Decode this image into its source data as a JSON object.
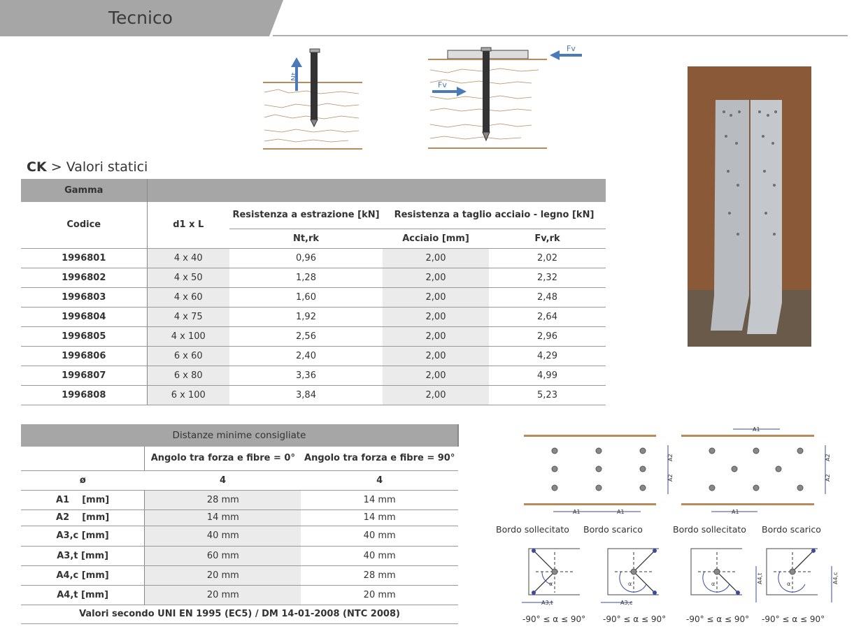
{
  "header": {
    "title": "Tecnico"
  },
  "section": {
    "brand": "CK",
    "separator": ">",
    "title": "Valori statici"
  },
  "diagrams_top": {
    "nt_label": "Nt",
    "fv_label": "Fv"
  },
  "static_table": {
    "group_header": "Gamma",
    "col_code": "Codice",
    "col_size": "d1 x L",
    "col_extraction": "Resistenza a estrazione [kN]",
    "col_shear": "Resistenza a taglio acciaio - legno [kN]",
    "sub_nt": "Nt,rk",
    "sub_steel": "Acciaio [mm]",
    "sub_fv": "Fv,rk",
    "rows": [
      {
        "code": "1996801",
        "size": "4 x 40",
        "nt": "0,96",
        "steel": "2,00",
        "fv": "2,02"
      },
      {
        "code": "1996802",
        "size": "4 x 50",
        "nt": "1,28",
        "steel": "2,00",
        "fv": "2,32"
      },
      {
        "code": "1996803",
        "size": "4 x 60",
        "nt": "1,60",
        "steel": "2,00",
        "fv": "2,48"
      },
      {
        "code": "1996804",
        "size": "4 x 75",
        "nt": "1,92",
        "steel": "2,00",
        "fv": "2,64"
      },
      {
        "code": "1996805",
        "size": "4 x 100",
        "nt": "2,56",
        "steel": "2,00",
        "fv": "2,96"
      },
      {
        "code": "1996806",
        "size": "6 x 60",
        "nt": "2,40",
        "steel": "2,00",
        "fv": "4,29"
      },
      {
        "code": "1996807",
        "size": "6 x 80",
        "nt": "3,36",
        "steel": "2,00",
        "fv": "4,99"
      },
      {
        "code": "1996808",
        "size": "6 x 100",
        "nt": "3,84",
        "steel": "2,00",
        "fv": "5,23"
      }
    ]
  },
  "distance_table": {
    "title": "Distanze minime consigliate",
    "col_0": "Angolo tra forza e fibre = 0°",
    "col_90": "Angolo tra forza e fibre = 90°",
    "diam_label": "ø",
    "diam_0": "4",
    "diam_90": "4",
    "rows": [
      {
        "label": "A1    [mm]",
        "v0": "28 mm",
        "v90": "14 mm"
      },
      {
        "label": "A2    [mm]",
        "v0": "14 mm",
        "v90": "14 mm"
      },
      {
        "label": "A3,c [mm]",
        "v0": "40 mm",
        "v90": "40 mm"
      },
      {
        "label": "A3,t [mm]",
        "v0": "60 mm",
        "v90": "40 mm"
      },
      {
        "label": "A4,c [mm]",
        "v0": "20 mm",
        "v90": "28 mm"
      },
      {
        "label": "A4,t [mm]",
        "v0": "20 mm",
        "v90": "20 mm"
      }
    ],
    "footer": "Valori secondo UNI EN 1995 (EC5) / DM 14-01-2008 (NTC 2008)"
  },
  "spacing_diagrams": {
    "a1": "A1",
    "a2": "A2",
    "a3t": "A3,t",
    "a3c": "A3,c",
    "a4t": "A4,t",
    "a4c": "A4,c",
    "alpha": "α",
    "captions": [
      "Bordo sollecitato",
      "Bordo scarico",
      "Bordo sollecitato",
      "Bordo scarico"
    ],
    "range": "-90° ≤ α ≤ 90°"
  },
  "colors": {
    "header_gray": "#a6a6a6",
    "shade": "#ebebeb",
    "wood": "#b98a5a",
    "arrow": "#4a7ab8",
    "diagram_blue": "#3a4aa0"
  }
}
